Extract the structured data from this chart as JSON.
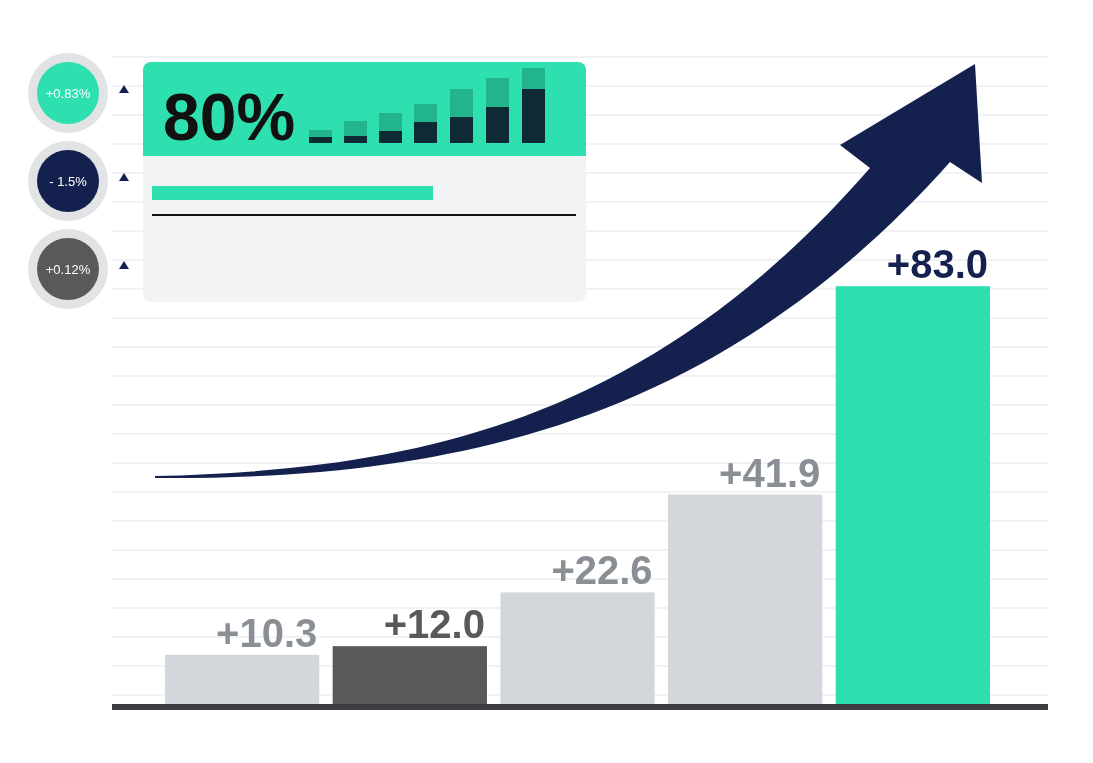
{
  "chart_data": {
    "type": "bar",
    "categories": [
      null,
      null,
      null,
      null,
      null
    ],
    "values": [
      10.3,
      12.0,
      22.6,
      41.9,
      83.0
    ],
    "colors": [
      "#d3d6da",
      "#58595b",
      "#d3d6da",
      "#d3d6da",
      "#2ee0b0"
    ],
    "value_labels": [
      "+10.3",
      "+12.0",
      "+22.6",
      "+41.9",
      "+83.0"
    ],
    "ylim": [
      0,
      100
    ],
    "grid": true,
    "annotations": [
      "+0.83%",
      "- 1.5%",
      "+0.12%",
      "80%"
    ]
  }
}
